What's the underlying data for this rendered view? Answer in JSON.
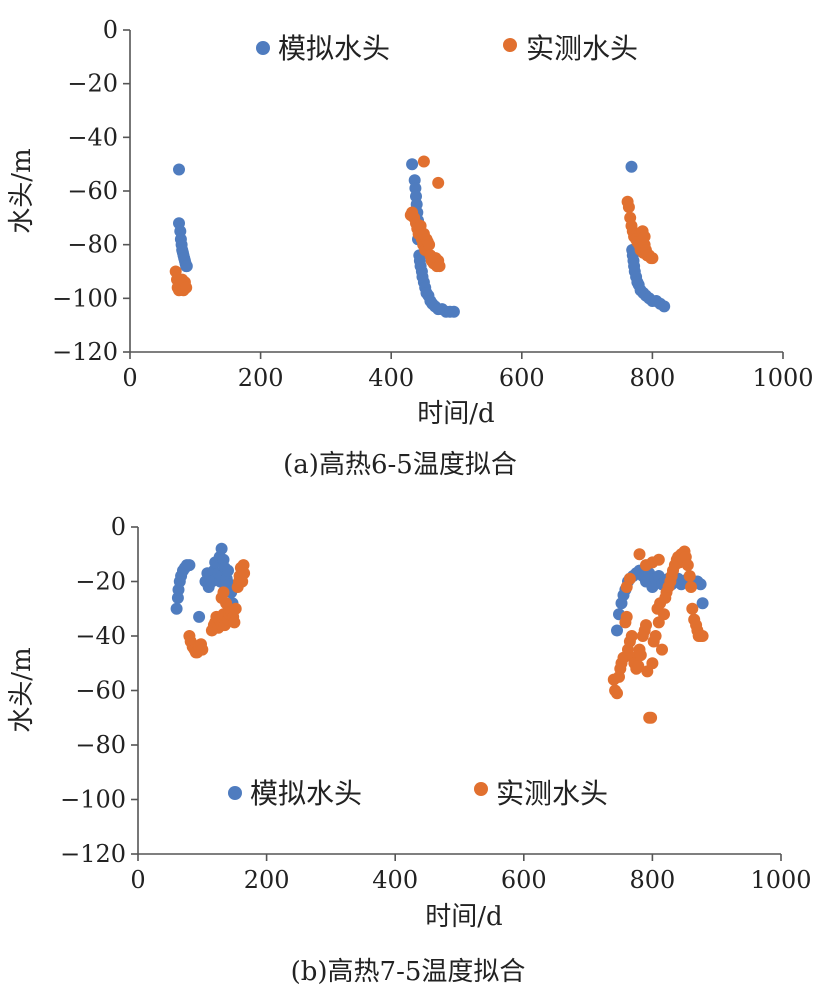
{
  "figure": {
    "captions": [
      "(a)高热6-5温度拟合",
      "(b)高热7-5温度拟合"
    ]
  },
  "chart_data": [
    {
      "type": "scatter",
      "caption": "(a)高热6-5温度拟合",
      "xlabel": "时间/d",
      "ylabel": "水头/m",
      "xlim": [
        0,
        1000
      ],
      "ylim": [
        -120,
        0
      ],
      "xticks": [
        0,
        200,
        400,
        600,
        800,
        1000
      ],
      "yticks": [
        0,
        -20,
        -40,
        -60,
        -80,
        -100,
        -120
      ],
      "legend_position": "top",
      "series": [
        {
          "name": "模拟水头",
          "color": "#4f7cbf",
          "points": [
            [
              75,
              -52
            ],
            [
              75,
              -72
            ],
            [
              77,
              -75
            ],
            [
              78,
              -78
            ],
            [
              79,
              -80
            ],
            [
              80,
              -82
            ],
            [
              81,
              -83
            ],
            [
              82,
              -84
            ],
            [
              83,
              -85
            ],
            [
              84,
              -86
            ],
            [
              85,
              -87
            ],
            [
              86,
              -88
            ],
            [
              87,
              -88
            ],
            [
              432,
              -50
            ],
            [
              436,
              -56
            ],
            [
              437,
              -59
            ],
            [
              438,
              -62
            ],
            [
              439,
              -65
            ],
            [
              440,
              -68
            ],
            [
              441,
              -71
            ],
            [
              442,
              -74
            ],
            [
              441,
              -78
            ],
            [
              443,
              -84
            ],
            [
              444,
              -86
            ],
            [
              445,
              -88
            ],
            [
              447,
              -90
            ],
            [
              448,
              -92
            ],
            [
              450,
              -94
            ],
            [
              452,
              -96
            ],
            [
              454,
              -98
            ],
            [
              457,
              -99
            ],
            [
              460,
              -101
            ],
            [
              463,
              -102
            ],
            [
              467,
              -103
            ],
            [
              472,
              -104
            ],
            [
              478,
              -104
            ],
            [
              484,
              -105
            ],
            [
              490,
              -105
            ],
            [
              496,
              -105
            ],
            [
              768,
              -51
            ],
            [
              769,
              -82
            ],
            [
              770,
              -84
            ],
            [
              771,
              -86
            ],
            [
              772,
              -88
            ],
            [
              773,
              -90
            ],
            [
              775,
              -92
            ],
            [
              777,
              -94
            ],
            [
              779,
              -95
            ],
            [
              782,
              -97
            ],
            [
              786,
              -98
            ],
            [
              790,
              -99
            ],
            [
              795,
              -100
            ],
            [
              800,
              -101
            ],
            [
              806,
              -101
            ],
            [
              812,
              -102
            ],
            [
              818,
              -103
            ]
          ]
        },
        {
          "name": "实测水头",
          "color": "#e1702f",
          "points": [
            [
              70,
              -90
            ],
            [
              72,
              -93
            ],
            [
              73,
              -96
            ],
            [
              75,
              -97
            ],
            [
              78,
              -95
            ],
            [
              80,
              -93
            ],
            [
              82,
              -97
            ],
            [
              84,
              -94
            ],
            [
              86,
              -96
            ],
            [
              430,
              -69
            ],
            [
              432,
              -68
            ],
            [
              435,
              -70
            ],
            [
              438,
              -72
            ],
            [
              440,
              -74
            ],
            [
              442,
              -76
            ],
            [
              445,
              -73
            ],
            [
              447,
              -78
            ],
            [
              449,
              -80
            ],
            [
              450,
              -76
            ],
            [
              452,
              -82
            ],
            [
              454,
              -78
            ],
            [
              456,
              -79
            ],
            [
              458,
              -80
            ],
            [
              460,
              -84
            ],
            [
              462,
              -86
            ],
            [
              465,
              -87
            ],
            [
              468,
              -85
            ],
            [
              470,
              -88
            ],
            [
              472,
              -86
            ],
            [
              474,
              -88
            ],
            [
              450,
              -49
            ],
            [
              472,
              -57
            ],
            [
              762,
              -64
            ],
            [
              764,
              -66
            ],
            [
              766,
              -70
            ],
            [
              768,
              -73
            ],
            [
              770,
              -75
            ],
            [
              772,
              -77
            ],
            [
              775,
              -78
            ],
            [
              777,
              -79
            ],
            [
              780,
              -80
            ],
            [
              782,
              -82
            ],
            [
              784,
              -81
            ],
            [
              786,
              -83
            ],
            [
              788,
              -80
            ],
            [
              790,
              -82
            ],
            [
              792,
              -84
            ],
            [
              795,
              -84
            ],
            [
              798,
              -85
            ],
            [
              800,
              -85
            ],
            [
              785,
              -75
            ],
            [
              788,
              -77
            ]
          ]
        }
      ]
    },
    {
      "type": "scatter",
      "caption": "(b)高热7-5温度拟合",
      "xlabel": "时间/d",
      "ylabel": "水头/m",
      "xlim": [
        0,
        1000
      ],
      "ylim": [
        -120,
        0
      ],
      "xticks": [
        0,
        200,
        400,
        600,
        800,
        1000
      ],
      "yticks": [
        0,
        -20,
        -40,
        -60,
        -80,
        -100,
        -120
      ],
      "legend_position": "bottom",
      "series": [
        {
          "name": "模拟水头",
          "color": "#4f7cbf",
          "points": [
            [
              60,
              -30
            ],
            [
              62,
              -26
            ],
            [
              63,
              -23
            ],
            [
              65,
              -20
            ],
            [
              67,
              -18
            ],
            [
              70,
              -16
            ],
            [
              73,
              -15
            ],
            [
              76,
              -14
            ],
            [
              80,
              -14
            ],
            [
              95,
              -33
            ],
            [
              105,
              -20
            ],
            [
              108,
              -17
            ],
            [
              110,
              -22
            ],
            [
              112,
              -18
            ],
            [
              115,
              -20
            ],
            [
              118,
              -16
            ],
            [
              120,
              -13
            ],
            [
              122,
              -19
            ],
            [
              125,
              -17
            ],
            [
              127,
              -11
            ],
            [
              128,
              -20
            ],
            [
              130,
              -8
            ],
            [
              130,
              -18
            ],
            [
              133,
              -12
            ],
            [
              135,
              -15
            ],
            [
              136,
              -22
            ],
            [
              138,
              -19
            ],
            [
              140,
              -16
            ],
            [
              142,
              -21
            ],
            [
              145,
              -24
            ],
            [
              147,
              -28
            ],
            [
              745,
              -38
            ],
            [
              748,
              -32
            ],
            [
              752,
              -28
            ],
            [
              755,
              -25
            ],
            [
              758,
              -23
            ],
            [
              762,
              -20
            ],
            [
              765,
              -19
            ],
            [
              770,
              -18
            ],
            [
              775,
              -17
            ],
            [
              780,
              -16
            ],
            [
              785,
              -18
            ],
            [
              790,
              -20
            ],
            [
              795,
              -17
            ],
            [
              800,
              -22
            ],
            [
              805,
              -19
            ],
            [
              810,
              -18
            ],
            [
              815,
              -21
            ],
            [
              820,
              -20
            ],
            [
              825,
              -19
            ],
            [
              830,
              -21
            ],
            [
              835,
              -20
            ],
            [
              840,
              -19
            ],
            [
              845,
              -21
            ],
            [
              850,
              -20
            ],
            [
              855,
              -19
            ],
            [
              860,
              -21
            ],
            [
              865,
              -20
            ],
            [
              870,
              -20
            ],
            [
              875,
              -21
            ],
            [
              878,
              -28
            ]
          ]
        },
        {
          "name": "实测水头",
          "color": "#e1702f",
          "points": [
            [
              80,
              -40
            ],
            [
              82,
              -42
            ],
            [
              85,
              -44
            ],
            [
              88,
              -45
            ],
            [
              90,
              -46
            ],
            [
              92,
              -46
            ],
            [
              95,
              -44
            ],
            [
              98,
              -43
            ],
            [
              100,
              -45
            ],
            [
              115,
              -38
            ],
            [
              118,
              -36
            ],
            [
              120,
              -35
            ],
            [
              122,
              -33
            ],
            [
              125,
              -37
            ],
            [
              127,
              -34
            ],
            [
              130,
              -36
            ],
            [
              133,
              -32
            ],
            [
              135,
              -36
            ],
            [
              137,
              -28
            ],
            [
              140,
              -34
            ],
            [
              142,
              -32
            ],
            [
              145,
              -31
            ],
            [
              148,
              -33
            ],
            [
              150,
              -35
            ],
            [
              152,
              -30
            ],
            [
              155,
              -22
            ],
            [
              157,
              -20
            ],
            [
              158,
              -18
            ],
            [
              160,
              -15
            ],
            [
              162,
              -20
            ],
            [
              164,
              -14
            ],
            [
              165,
              -17
            ],
            [
              130,
              -26
            ],
            [
              133,
              -24
            ],
            [
              740,
              -56
            ],
            [
              742,
              -60
            ],
            [
              745,
              -61
            ],
            [
              748,
              -55
            ],
            [
              750,
              -52
            ],
            [
              752,
              -50
            ],
            [
              755,
              -48
            ],
            [
              758,
              -35
            ],
            [
              760,
              -33
            ],
            [
              762,
              -45
            ],
            [
              765,
              -42
            ],
            [
              768,
              -40
            ],
            [
              770,
              -48
            ],
            [
              772,
              -50
            ],
            [
              775,
              -52
            ],
            [
              778,
              -51
            ],
            [
              780,
              -45
            ],
            [
              782,
              -47
            ],
            [
              785,
              -40
            ],
            [
              788,
              -38
            ],
            [
              790,
              -36
            ],
            [
              792,
              -53
            ],
            [
              795,
              -70
            ],
            [
              798,
              -70
            ],
            [
              800,
              -50
            ],
            [
              802,
              -42
            ],
            [
              805,
              -40
            ],
            [
              808,
              -30
            ],
            [
              810,
              -35
            ],
            [
              812,
              -28
            ],
            [
              815,
              -45
            ],
            [
              818,
              -32
            ],
            [
              820,
              -26
            ],
            [
              822,
              -24
            ],
            [
              825,
              -22
            ],
            [
              828,
              -20
            ],
            [
              830,
              -18
            ],
            [
              832,
              -16
            ],
            [
              835,
              -14
            ],
            [
              838,
              -12
            ],
            [
              840,
              -11
            ],
            [
              842,
              -13
            ],
            [
              845,
              -10
            ],
            [
              848,
              -12
            ],
            [
              850,
              -9
            ],
            [
              852,
              -11
            ],
            [
              855,
              -14
            ],
            [
              858,
              -18
            ],
            [
              860,
              -22
            ],
            [
              862,
              -30
            ],
            [
              865,
              -34
            ],
            [
              868,
              -36
            ],
            [
              870,
              -38
            ],
            [
              872,
              -40
            ],
            [
              875,
              -40
            ],
            [
              878,
              -40
            ],
            [
              780,
              -10
            ],
            [
              790,
              -14
            ],
            [
              800,
              -13
            ],
            [
              810,
              -12
            ],
            [
              760,
              -22
            ],
            [
              765,
              -19
            ]
          ]
        }
      ]
    }
  ]
}
